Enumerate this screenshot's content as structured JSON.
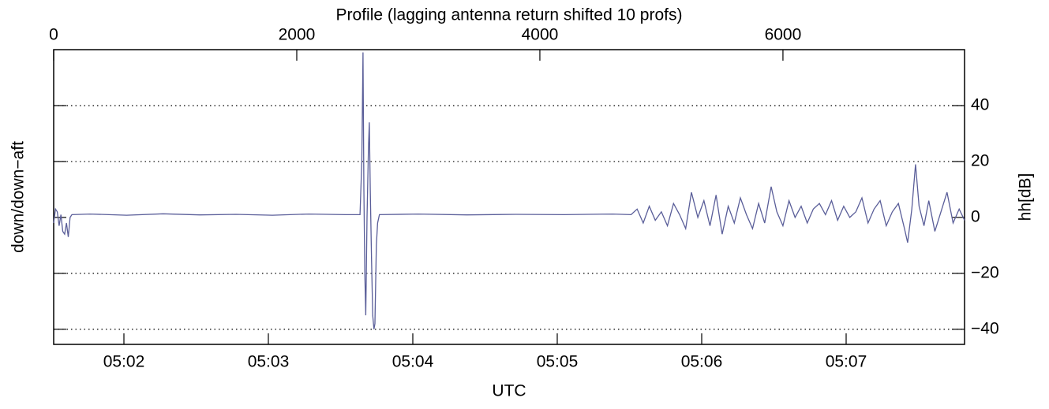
{
  "chart_data": {
    "type": "line",
    "title": "Profile (lagging antenna return shifted 10 profs)",
    "xlabel": "UTC",
    "ylabel": "down/down−aft",
    "y2label": "hh[dB]",
    "xlim": [
      0,
      7494
    ],
    "xticks": [
      0,
      2000,
      4000,
      6000
    ],
    "x2lim": [
      1.5137,
      7.8197
    ],
    "x2ticks": [
      {
        "value": 2,
        "label": "05:02"
      },
      {
        "value": 3,
        "label": "05:03"
      },
      {
        "value": 4,
        "label": "05:04"
      },
      {
        "value": 5,
        "label": "05:05"
      },
      {
        "value": 6,
        "label": "05:06"
      },
      {
        "value": 7,
        "label": "05:07"
      }
    ],
    "ylim": [
      -45.4,
      60
    ],
    "yticks": [
      {
        "value": -40,
        "label": "−40"
      },
      {
        "value": -20,
        "label": "−20"
      },
      0,
      20,
      40
    ],
    "grid": true,
    "series": [
      {
        "color": "#5a5e99",
        "x": [
          0,
          15,
          30,
          45,
          60,
          75,
          90,
          105,
          120,
          135,
          150,
          300,
          600,
          900,
          1200,
          1500,
          1800,
          2100,
          2400,
          2520,
          2535,
          2545,
          2552,
          2560,
          2568,
          2578,
          2590,
          2597,
          2605,
          2615,
          2625,
          2635,
          2643,
          2655,
          2665,
          2680,
          3000,
          3400,
          3800,
          4200,
          4600,
          4750,
          4800,
          4850,
          4900,
          4950,
          5000,
          5050,
          5100,
          5150,
          5200,
          5247,
          5300,
          5350,
          5400,
          5450,
          5500,
          5550,
          5600,
          5650,
          5700,
          5750,
          5800,
          5850,
          5903,
          5950,
          6000,
          6050,
          6100,
          6150,
          6200,
          6250,
          6300,
          6350,
          6400,
          6450,
          6500,
          6550,
          6600,
          6650,
          6700,
          6750,
          6800,
          6850,
          6900,
          6950,
          7000,
          7026,
          7060,
          7091,
          7120,
          7160,
          7200,
          7250,
          7300,
          7350,
          7400,
          7450,
          7494
        ],
        "values": [
          -2,
          3,
          2,
          -3,
          1,
          -5,
          -6,
          -2,
          -7,
          0,
          1,
          1.2,
          0.8,
          1.3,
          0.9,
          1.1,
          0.8,
          1.2,
          1,
          1,
          20,
          59,
          10,
          -20,
          -35,
          0,
          25,
          34,
          10,
          -15,
          -35,
          -40,
          -38,
          -10,
          -2,
          1,
          1.2,
          0.9,
          1.1,
          1,
          1.2,
          1,
          3,
          -2,
          4,
          -1,
          2,
          -3,
          5,
          1,
          -4,
          9,
          0,
          6,
          -3,
          8,
          -6,
          4,
          -2,
          7,
          1,
          -4,
          5,
          -2,
          11,
          2,
          -3,
          6,
          0,
          4,
          -2,
          3,
          5,
          1,
          6,
          -1,
          4,
          0,
          2,
          7,
          -2,
          3,
          6,
          -3,
          2,
          5,
          -4,
          -9,
          3,
          19,
          4,
          -3,
          6,
          -5,
          2,
          9,
          -2,
          3,
          -1
        ]
      }
    ]
  }
}
